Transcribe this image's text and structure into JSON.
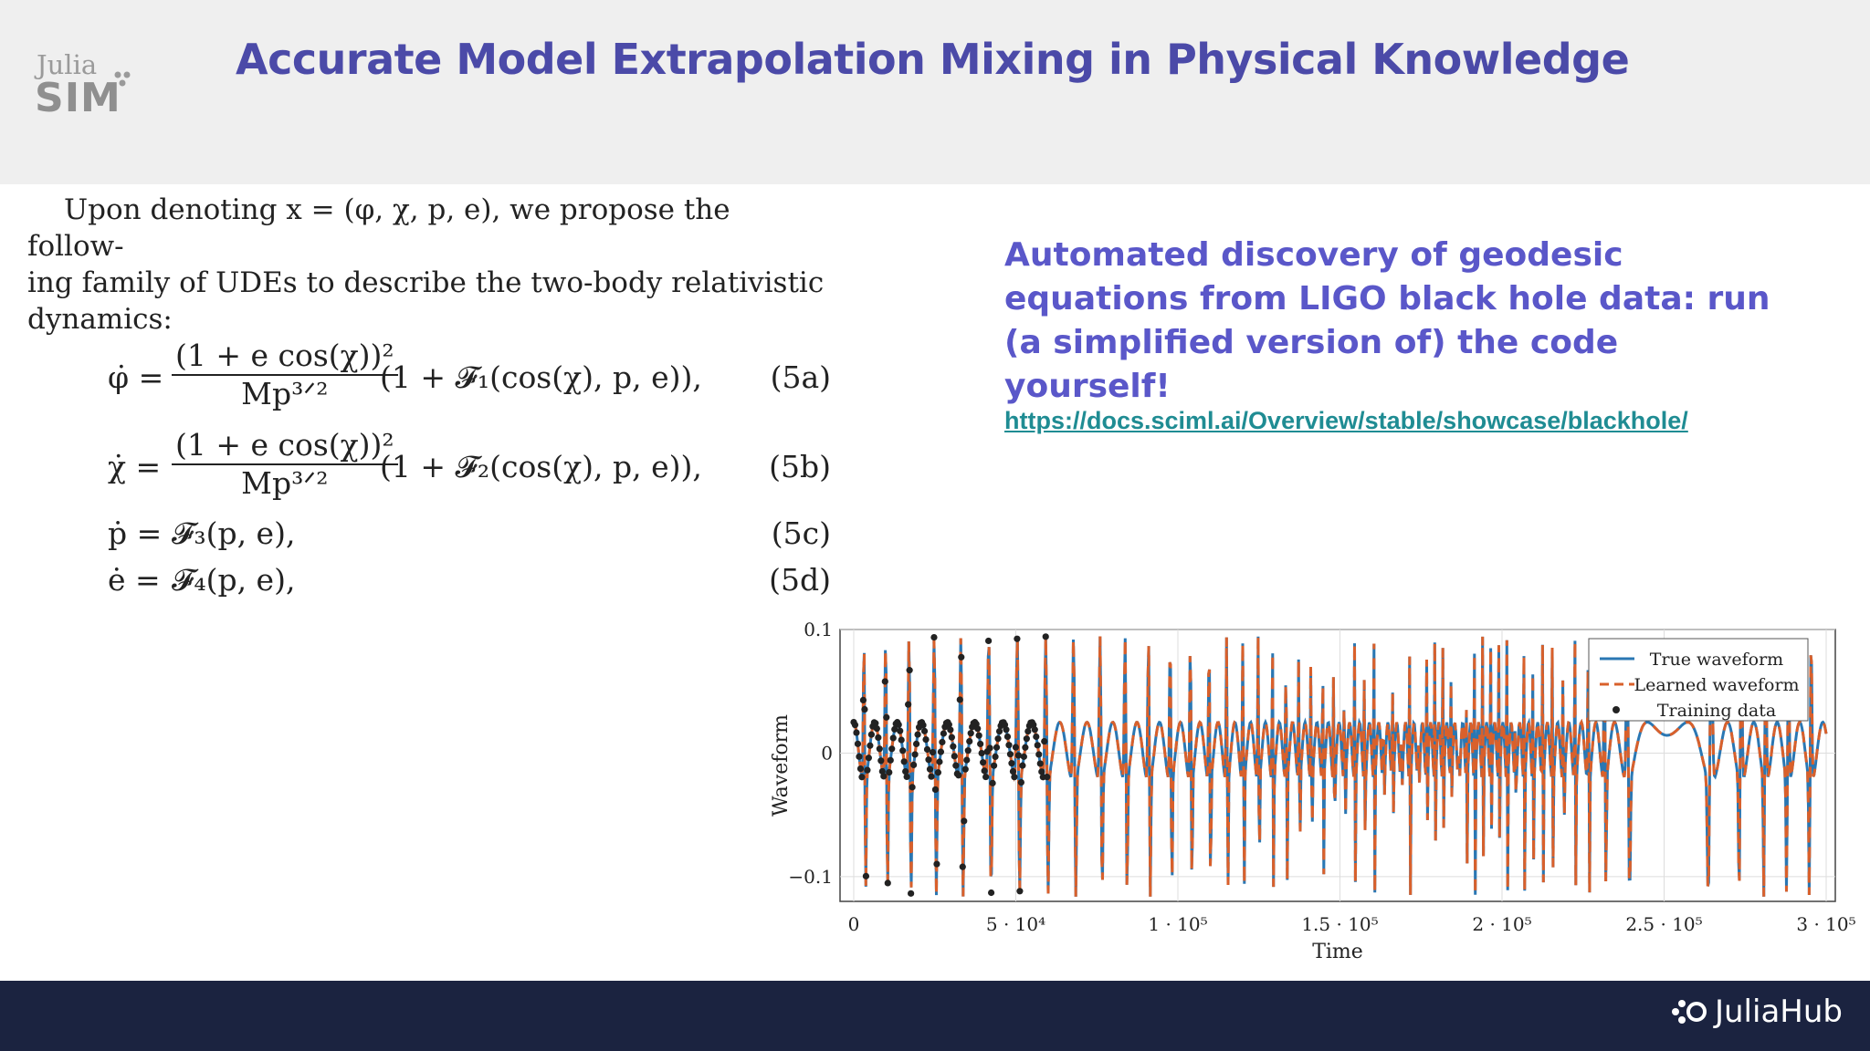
{
  "header": {
    "logo_top": "Julia",
    "logo_bottom": "SIM",
    "title": "Accurate Model Extrapolation Mixing in Physical Knowledge"
  },
  "paper": {
    "intro_line1": "Upon denoting x = (φ, χ, p, e), we propose the follow-",
    "intro_line2": "ing family of UDEs to describe the two-body relativistic",
    "intro_line3": "dynamics:",
    "equations": [
      {
        "lhs": "φ̇ =",
        "num": "(1 + e cos(χ))²",
        "den": "Mp³ᐟ²",
        "tail": "(1 + 𝓕₁(cos(χ), p, e)),",
        "label": "(5a)"
      },
      {
        "lhs": "χ̇ =",
        "num": "(1 + e cos(χ))²",
        "den": "Mp³ᐟ²",
        "tail": "(1 + 𝓕₂(cos(χ), p, e)),",
        "label": "(5b)"
      },
      {
        "lhs": "ṗ =",
        "tail": "𝓕₃(p, e),",
        "label": "(5c)"
      },
      {
        "lhs": "ė =",
        "tail": "𝓕₄(p, e),",
        "label": "(5d)"
      }
    ]
  },
  "side": {
    "text": "Automated discovery of geodesic equations from LIGO black hole data: run (a simplified version of) the code yourself!",
    "link": "https://docs.sciml.ai/Overview/stable/showcase/blackhole/"
  },
  "chart_data": {
    "type": "line",
    "xlabel": "Time",
    "ylabel": "Waveform",
    "xlim": [
      0,
      300000
    ],
    "ylim": [
      -0.12,
      0.1
    ],
    "xticks": [
      "0",
      "5 · 10⁴",
      "1 · 10⁵",
      "1.5 · 10⁵",
      "2 · 10⁵",
      "2.5 · 10⁵",
      "3 · 10⁵"
    ],
    "xtick_values": [
      0,
      50000,
      100000,
      150000,
      200000,
      250000,
      300000
    ],
    "yticks": [
      "0.1",
      "0",
      "−0.1"
    ],
    "ytick_values": [
      0.1,
      0,
      -0.1
    ],
    "grid": true,
    "legend_position": "top-right",
    "series": [
      {
        "name": "True waveform",
        "style": "solid",
        "color": "#2a77b3"
      },
      {
        "name": "Learned waveform",
        "style": "dashed",
        "color": "#d9602b"
      },
      {
        "name": "Training data",
        "style": "points",
        "color": "#222222"
      }
    ],
    "training_range": [
      0,
      60000
    ],
    "baseline_amplitude": 0.025,
    "peak_amplitude": 0.1,
    "trough_amplitude": -0.11
  },
  "footer": {
    "brand": "JuliaHub"
  }
}
